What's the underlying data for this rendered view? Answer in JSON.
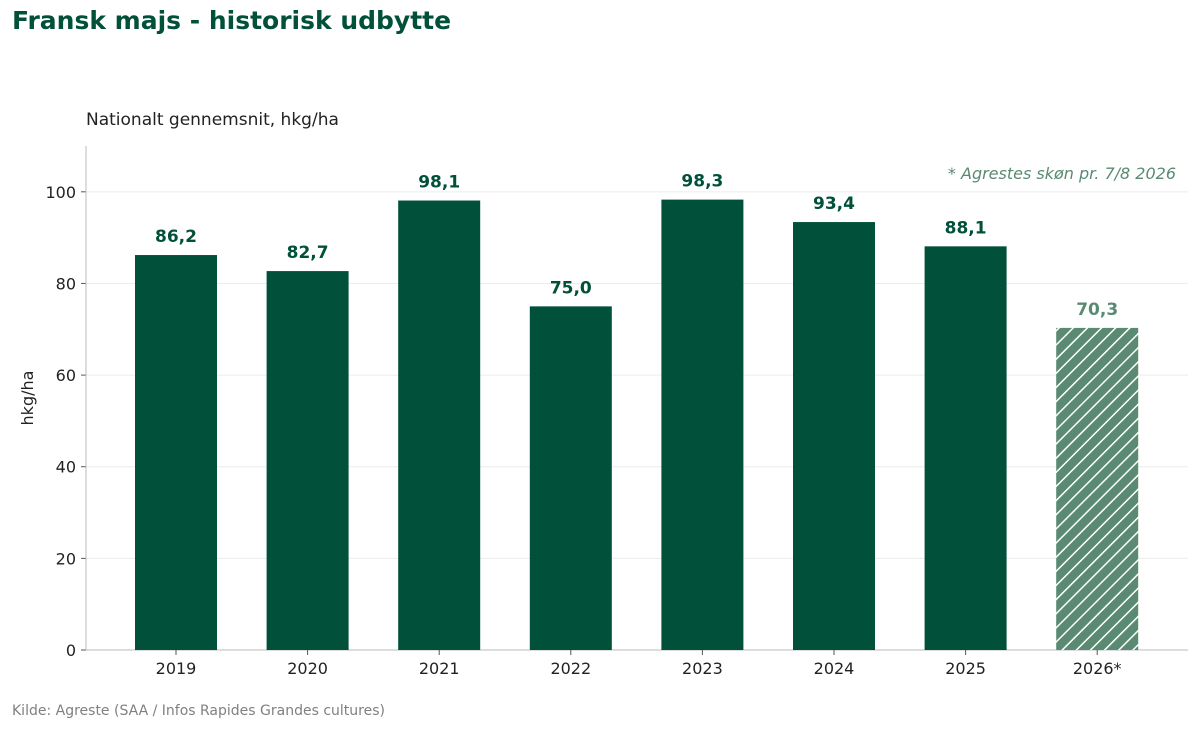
{
  "chart_data": {
    "type": "bar",
    "title": "Fransk majs - historisk udbytte",
    "subtitle": "Nationalt gennemsnit, hkg/ha",
    "ylabel": "hkg/ha",
    "xlabel": "",
    "ylim": [
      0,
      110
    ],
    "yticks": [
      0,
      20,
      40,
      60,
      80,
      100
    ],
    "grid": "horizontal",
    "categories": [
      "2019",
      "2020",
      "2021",
      "2022",
      "2023",
      "2024",
      "2025",
      "2026*"
    ],
    "values": [
      86.2,
      82.7,
      98.1,
      75.0,
      98.3,
      93.4,
      88.1,
      70.3
    ],
    "value_labels": [
      "86,2",
      "82,7",
      "98,1",
      "75,0",
      "98,3",
      "93,4",
      "88,1",
      "70,3"
    ],
    "estimate_flags": [
      false,
      false,
      false,
      false,
      false,
      false,
      false,
      true
    ],
    "annotation": "* Agrestes skøn pr. 7/8 2026",
    "source": "Kilde: Agreste (SAA / Infos Rapides Grandes cultures)",
    "colors": {
      "bar": "#00503a",
      "estimate": "#5a8a72",
      "title": "#00503a",
      "annotation": "#5a8a72"
    }
  }
}
